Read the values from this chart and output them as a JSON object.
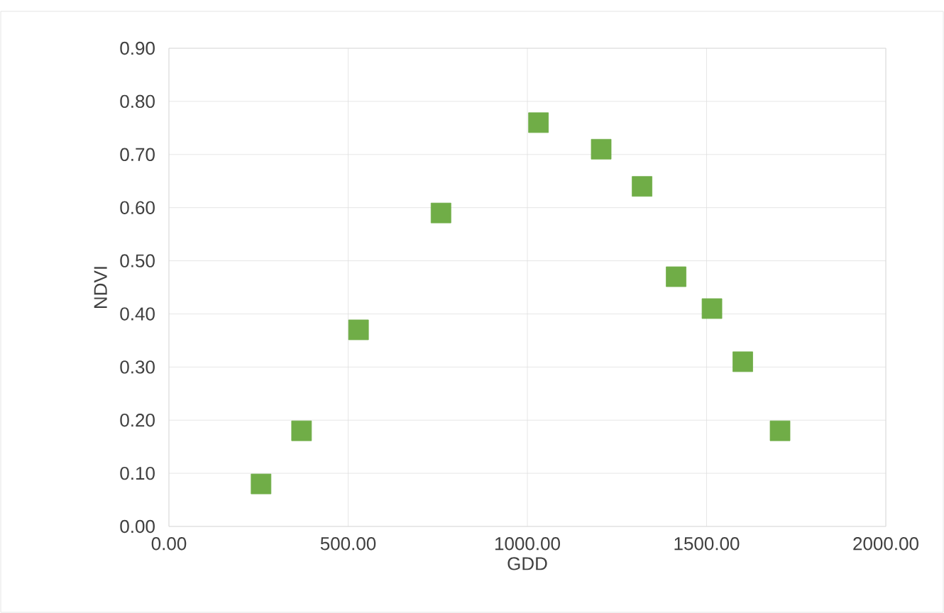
{
  "chart_data": {
    "type": "scatter",
    "xlabel": "GDD",
    "ylabel": "NDVI",
    "x": [
      257,
      370,
      529,
      759,
      1031,
      1206,
      1320,
      1415,
      1515,
      1601,
      1705
    ],
    "series": [
      {
        "color": "#70ad47",
        "values": [
          0.08,
          0.18,
          0.37,
          0.59,
          0.76,
          0.71,
          0.64,
          0.47,
          0.41,
          0.31,
          0.18
        ]
      }
    ],
    "xlim": [
      0,
      2000
    ],
    "ylim": [
      0,
      0.9
    ],
    "xticks": [
      {
        "value": 0,
        "label": "0.00"
      },
      {
        "value": 500,
        "label": "500.00"
      },
      {
        "value": 1000,
        "label": "1000.00"
      },
      {
        "value": 1500,
        "label": "1500.00"
      },
      {
        "value": 2000,
        "label": "2000.00"
      }
    ],
    "yticks": [
      {
        "value": 0,
        "label": "0.00"
      },
      {
        "value": 0.1,
        "label": "0.10"
      },
      {
        "value": 0.2,
        "label": "0.20"
      },
      {
        "value": 0.3,
        "label": "0.30"
      },
      {
        "value": 0.4,
        "label": "0.40"
      },
      {
        "value": 0.5,
        "label": "0.50"
      },
      {
        "value": 0.6,
        "label": "0.60"
      },
      {
        "value": 0.7,
        "label": "0.70"
      },
      {
        "value": 0.8,
        "label": "0.80"
      },
      {
        "value": 0.9,
        "label": "0.90"
      }
    ],
    "grid": true,
    "marker": "square"
  }
}
